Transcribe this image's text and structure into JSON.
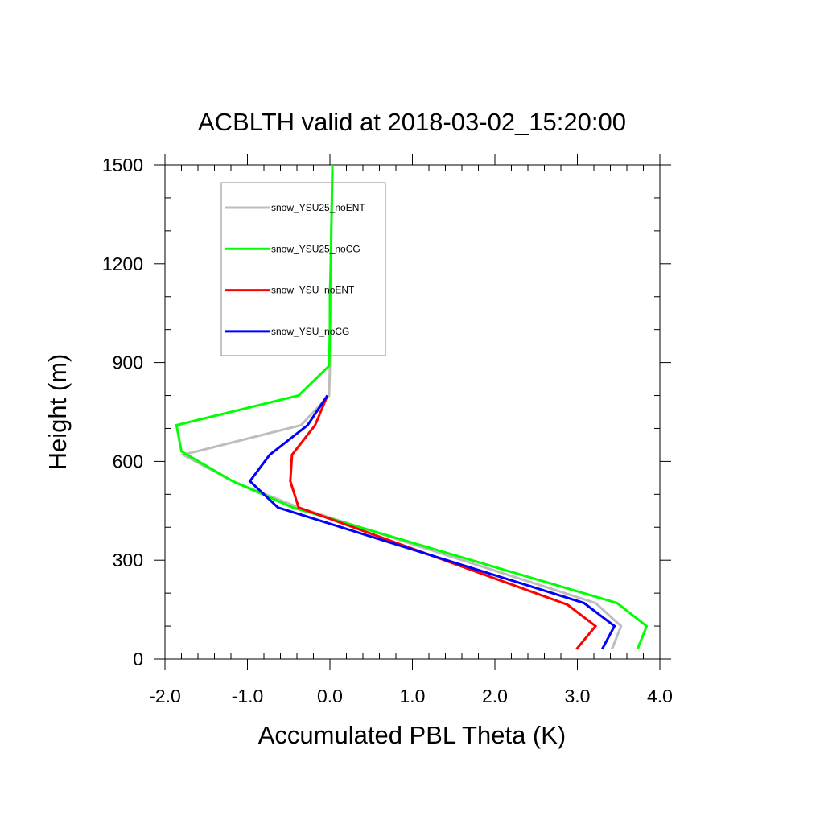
{
  "chart_data": {
    "type": "line",
    "title": "ACBLTH valid at 2018-03-02_15:20:00",
    "xlabel": "Accumulated PBL Theta (K)",
    "ylabel": "Height (m)",
    "xlim": [
      -2.0,
      4.0
    ],
    "ylim": [
      0,
      1500
    ],
    "xticks": [
      -2.0,
      -1.0,
      0.0,
      1.0,
      2.0,
      3.0,
      4.0
    ],
    "xtick_labels": [
      "-2.0",
      "-1.0",
      "0.0",
      "1.0",
      "2.0",
      "3.0",
      "4.0"
    ],
    "yticks": [
      0,
      300,
      600,
      900,
      1200,
      1500
    ],
    "ytick_labels": [
      "0",
      "300",
      "600",
      "900",
      "1200",
      "1500"
    ],
    "grid": false,
    "legend_placement": "top-left",
    "series": [
      {
        "name": "snow_YSU25_noENT",
        "color": "#bdbdbd",
        "x": [
          3.42,
          3.53,
          3.22,
          -0.38,
          -1.18,
          -1.78,
          -0.35,
          -0.01,
          0.0,
          0.0,
          0.01,
          0.01,
          0.02,
          0.03
        ],
        "y": [
          30,
          100,
          170,
          460,
          540,
          620,
          710,
          800,
          890,
          1000,
          1100,
          1200,
          1350,
          1500
        ]
      },
      {
        "name": "snow_YSU25_noCG",
        "color": "#00ff00",
        "x": [
          3.73,
          3.84,
          3.48,
          -0.45,
          -1.18,
          -1.8,
          -1.86,
          -0.38,
          -0.01,
          0.0,
          0.0,
          0.01,
          0.02,
          0.03
        ],
        "y": [
          30,
          100,
          170,
          460,
          540,
          630,
          710,
          800,
          890,
          1000,
          1100,
          1200,
          1350,
          1500
        ]
      },
      {
        "name": "snow_YSU_noENT",
        "color": "#ff0000",
        "x": [
          2.99,
          3.22,
          2.88,
          -0.38,
          -0.48,
          -0.46,
          -0.18,
          -0.03
        ],
        "y": [
          30,
          100,
          165,
          460,
          540,
          620,
          710,
          800
        ]
      },
      {
        "name": "snow_YSU_noCG",
        "color": "#0000ff",
        "x": [
          3.3,
          3.45,
          3.08,
          -0.63,
          -0.97,
          -0.73,
          -0.27,
          -0.03
        ],
        "y": [
          30,
          100,
          170,
          460,
          540,
          620,
          710,
          800
        ]
      }
    ]
  }
}
